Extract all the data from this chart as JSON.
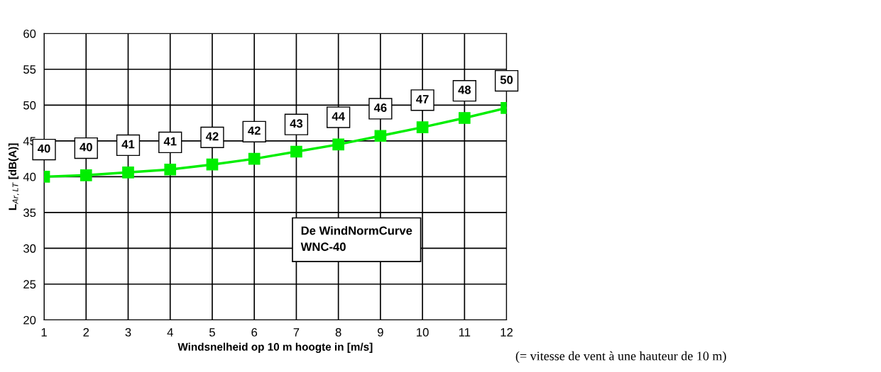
{
  "chart_data": {
    "type": "line",
    "xlabel": "Windsnelheid op 10 m hoogte in [m/s]",
    "ylabel": "L$_{Ar,LT}$ [dB(A)]",
    "x": [
      1,
      2,
      3,
      4,
      5,
      6,
      7,
      8,
      9,
      10,
      11,
      12
    ],
    "series": [
      {
        "color": "#00ee00",
        "values": [
          40,
          40.2,
          40.6,
          41.0,
          41.7,
          42.5,
          43.5,
          44.5,
          45.7,
          46.9,
          48.2,
          49.6
        ],
        "value_labels": [
          "40",
          "40",
          "41",
          "41",
          "42",
          "42",
          "43",
          "44",
          "46",
          "47",
          "48",
          "50"
        ]
      }
    ],
    "xlim": [
      1,
      12
    ],
    "xticks": [
      1,
      2,
      3,
      4,
      5,
      6,
      7,
      8,
      9,
      10,
      11,
      12
    ],
    "ylim": [
      20,
      60
    ],
    "yticks": [
      20,
      25,
      30,
      35,
      40,
      45,
      50,
      55,
      60
    ],
    "grid": true,
    "marker": "square",
    "line_style": "solid",
    "annotations": [
      "De WindNormCurve\nWNC-40",
      "(= vitesse de vent à une hauteur de 10 m)"
    ]
  }
}
